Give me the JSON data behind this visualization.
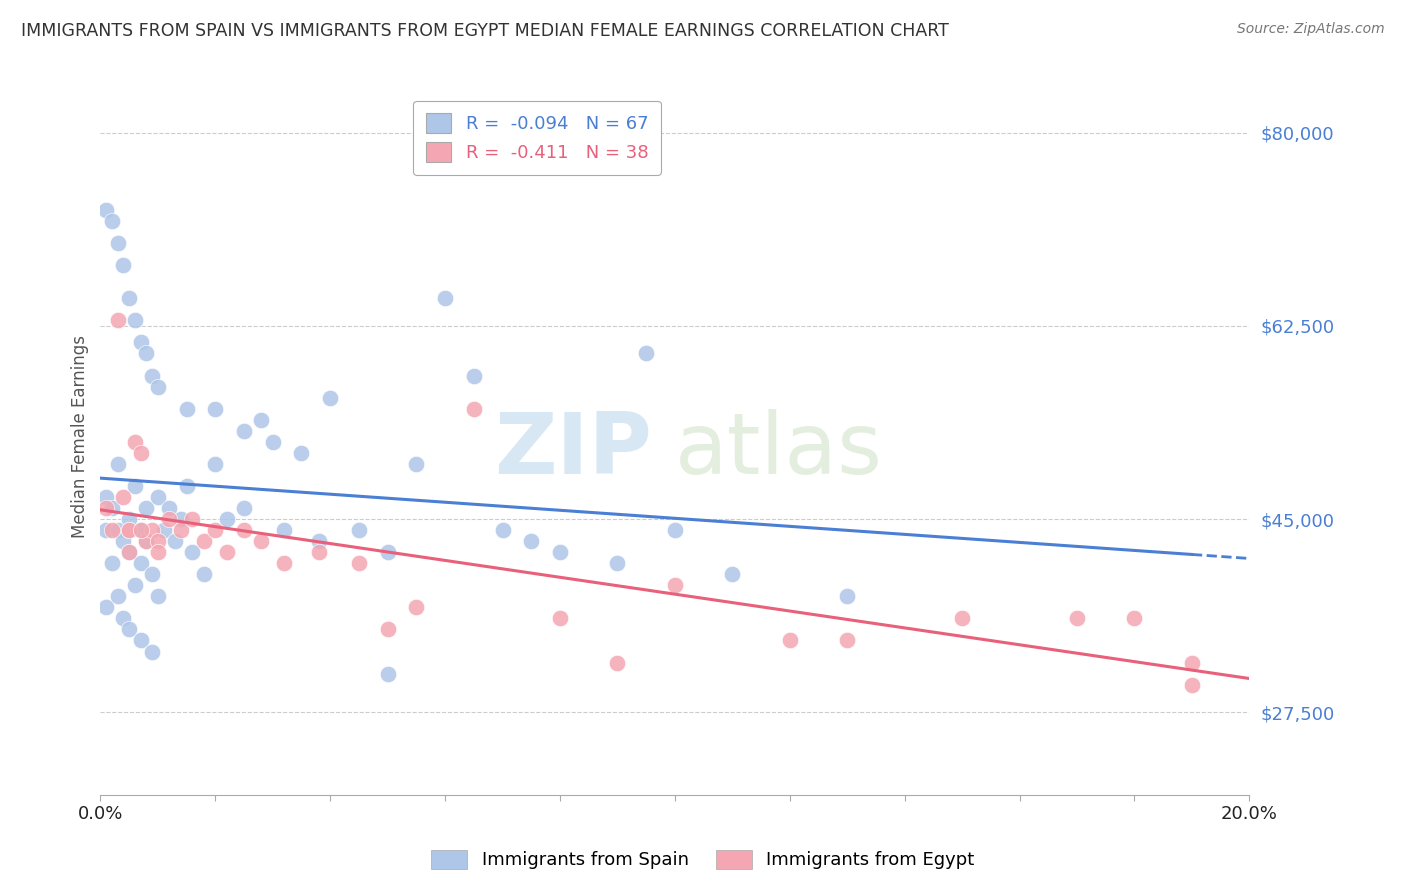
{
  "title": "IMMIGRANTS FROM SPAIN VS IMMIGRANTS FROM EGYPT MEDIAN FEMALE EARNINGS CORRELATION CHART",
  "source": "Source: ZipAtlas.com",
  "ylabel": "Median Female Earnings",
  "xlim": [
    0.0,
    0.2
  ],
  "ylim": [
    20000,
    85000
  ],
  "yticks": [
    27500,
    45000,
    62500,
    80000
  ],
  "xticks": [
    0.0,
    0.02,
    0.04,
    0.06,
    0.08,
    0.1,
    0.12,
    0.14,
    0.16,
    0.18,
    0.2
  ],
  "spain_R": -0.094,
  "spain_N": 67,
  "egypt_R": -0.411,
  "egypt_N": 38,
  "spain_color": "#aec6e8",
  "egypt_color": "#f4a7b2",
  "spain_line_color": "#4a7fd4",
  "egypt_line_color": "#e8607a",
  "background_color": "#ffffff",
  "grid_color": "#cccccc",
  "title_color": "#333333",
  "axis_label_color": "#555555",
  "tick_label_color_y": "#4a7fd4",
  "watermark_color": "#d8e8f0",
  "spain_x": [
    0.001,
    0.001,
    0.001,
    0.002,
    0.002,
    0.003,
    0.003,
    0.003,
    0.004,
    0.004,
    0.005,
    0.005,
    0.005,
    0.006,
    0.006,
    0.007,
    0.007,
    0.007,
    0.008,
    0.008,
    0.009,
    0.009,
    0.01,
    0.01,
    0.011,
    0.012,
    0.013,
    0.014,
    0.015,
    0.016,
    0.018,
    0.02,
    0.022,
    0.025,
    0.028,
    0.032,
    0.038,
    0.045,
    0.05,
    0.055,
    0.06,
    0.065,
    0.07,
    0.075,
    0.08,
    0.09,
    0.095,
    0.1,
    0.11,
    0.13,
    0.001,
    0.002,
    0.003,
    0.004,
    0.005,
    0.006,
    0.007,
    0.008,
    0.009,
    0.01,
    0.015,
    0.02,
    0.025,
    0.03,
    0.035,
    0.04,
    0.05
  ],
  "spain_y": [
    44000,
    47000,
    37000,
    46000,
    41000,
    50000,
    44000,
    38000,
    43000,
    36000,
    45000,
    42000,
    35000,
    48000,
    39000,
    44000,
    41000,
    34000,
    46000,
    43000,
    40000,
    33000,
    47000,
    38000,
    44000,
    46000,
    43000,
    45000,
    48000,
    42000,
    40000,
    50000,
    45000,
    46000,
    54000,
    44000,
    43000,
    44000,
    42000,
    50000,
    65000,
    58000,
    44000,
    43000,
    42000,
    41000,
    60000,
    44000,
    40000,
    38000,
    73000,
    72000,
    70000,
    68000,
    65000,
    63000,
    61000,
    60000,
    58000,
    57000,
    55000,
    55000,
    53000,
    52000,
    51000,
    56000,
    31000
  ],
  "egypt_x": [
    0.001,
    0.002,
    0.003,
    0.004,
    0.005,
    0.005,
    0.006,
    0.007,
    0.008,
    0.009,
    0.01,
    0.012,
    0.014,
    0.016,
    0.018,
    0.02,
    0.022,
    0.025,
    0.028,
    0.032,
    0.038,
    0.045,
    0.05,
    0.055,
    0.065,
    0.08,
    0.09,
    0.1,
    0.12,
    0.13,
    0.15,
    0.17,
    0.18,
    0.19,
    0.19,
    0.005,
    0.007,
    0.01
  ],
  "egypt_y": [
    46000,
    44000,
    63000,
    47000,
    44000,
    42000,
    52000,
    51000,
    43000,
    44000,
    43000,
    45000,
    44000,
    45000,
    43000,
    44000,
    42000,
    44000,
    43000,
    41000,
    42000,
    41000,
    35000,
    37000,
    55000,
    36000,
    32000,
    39000,
    34000,
    34000,
    36000,
    36000,
    36000,
    32000,
    30000,
    44000,
    44000,
    42000
  ]
}
